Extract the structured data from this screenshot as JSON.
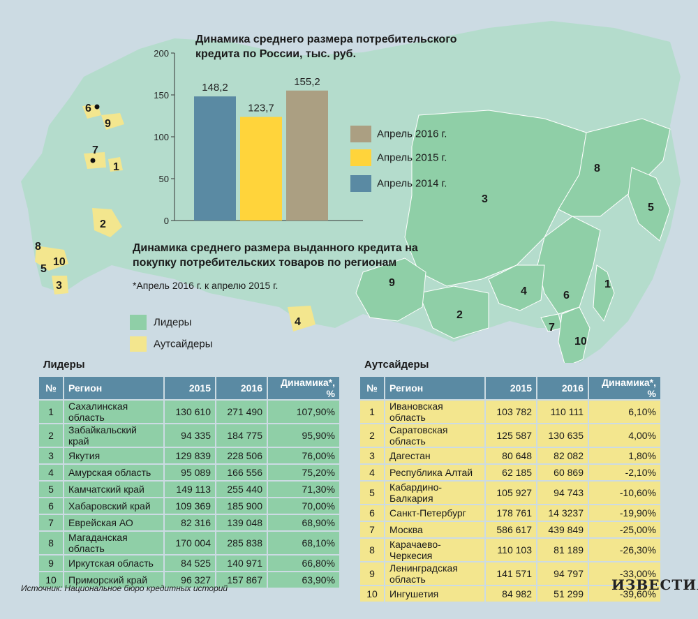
{
  "colors": {
    "background": "#ccdbe3",
    "russia": "#b4dccc",
    "leader": "#8fcfa7",
    "outsider": "#f3e68e",
    "bar2014": "#5a8aa3",
    "bar2015": "#ffd43b",
    "bar2016": "#ab9f82"
  },
  "chart_data": {
    "type": "bar",
    "title": "Динамика среднего размера потребительского кредита по России, тыс. руб.",
    "categories": [
      "Апрель 2014 г.",
      "Апрель 2015 г.",
      "Апрель 2016 г."
    ],
    "values": [
      148.2,
      123.7,
      155.2
    ],
    "value_labels": [
      "148,2",
      "123,7",
      "155,2"
    ],
    "yticks": [
      "0",
      "50",
      "100",
      "150",
      "200"
    ],
    "ylim": [
      0,
      200
    ],
    "legend_order": [
      "Апрель 2016 г.",
      "Апрель 2015 г.",
      "Апрель 2014 г."
    ],
    "legend_placement": "right"
  },
  "map": {
    "title": "Динамика среднего размера выданного кредита на покупку потребительских товаров по регионам",
    "note": "*Апрель 2016 г. к апрелю 2015 г.",
    "legend": {
      "leaders": "Лидеры",
      "outsiders": "Аутсайдеры"
    },
    "leader_labels": [
      "1",
      "2",
      "3",
      "4",
      "5",
      "6",
      "7",
      "8",
      "9",
      "10"
    ],
    "outsider_labels": [
      "1",
      "2",
      "3",
      "4",
      "5",
      "6",
      "7",
      "8",
      "9",
      "10"
    ]
  },
  "leaders": {
    "title": "Лидеры",
    "headers": [
      "№",
      "Регион",
      "2015",
      "2016",
      "Динамика*, %"
    ],
    "rows": [
      [
        "1",
        "Сахалинская область",
        "130 610",
        "271 490",
        "107,90%"
      ],
      [
        "2",
        "Забайкальский край",
        "94 335",
        "184 775",
        "95,90%"
      ],
      [
        "3",
        "Якутия",
        "129 839",
        "228 506",
        "76,00%"
      ],
      [
        "4",
        "Амурская область",
        "95 089",
        "166 556",
        "75,20%"
      ],
      [
        "5",
        "Камчатский край",
        "149 113",
        "255 440",
        "71,30%"
      ],
      [
        "6",
        "Хабаровский край",
        "109 369",
        "185 900",
        "70,00%"
      ],
      [
        "7",
        "Еврейская АО",
        "82 316",
        "139 048",
        "68,90%"
      ],
      [
        "8",
        "Магаданская область",
        "170 004",
        "285 838",
        "68,10%"
      ],
      [
        "9",
        "Иркутская область",
        "84 525",
        "140 971",
        "66,80%"
      ],
      [
        "10",
        "Приморский край",
        "96 327",
        "157 867",
        "63,90%"
      ]
    ]
  },
  "outsiders": {
    "title": "Аутсайдеры",
    "headers": [
      "№",
      "Регион",
      "2015",
      "2016",
      "Динамика*, %"
    ],
    "rows": [
      [
        "1",
        "Ивановская область",
        "103 782",
        "110 111",
        "6,10%"
      ],
      [
        "2",
        "Саратовская область",
        "125 587",
        "130 635",
        "4,00%"
      ],
      [
        "3",
        "Дагестан",
        "80 648",
        "82 082",
        "1,80%"
      ],
      [
        "4",
        "Республика Алтай",
        "62 185",
        "60 869",
        "-2,10%"
      ],
      [
        "5",
        "Кабардино-Балкария",
        "105 927",
        "94 743",
        "-10,60%"
      ],
      [
        "6",
        "Санкт-Петербург",
        "178 761",
        "14 3237",
        "-19,90%"
      ],
      [
        "7",
        "Москва",
        "586 617",
        "439 849",
        "-25,00%"
      ],
      [
        "8",
        "Карачаево-Черкесия",
        "110 103",
        "81 189",
        "-26,30%"
      ],
      [
        "9",
        "Ленинградская область",
        "141 571",
        "94 797",
        "-33,00%"
      ],
      [
        "10",
        "Ингушетия",
        "84 982",
        "51 299",
        "-39,60%"
      ]
    ]
  },
  "footer": {
    "source": "Источник: Национальное бюро кредитных историй",
    "logo": "ИЗВЕСТИЯ"
  }
}
